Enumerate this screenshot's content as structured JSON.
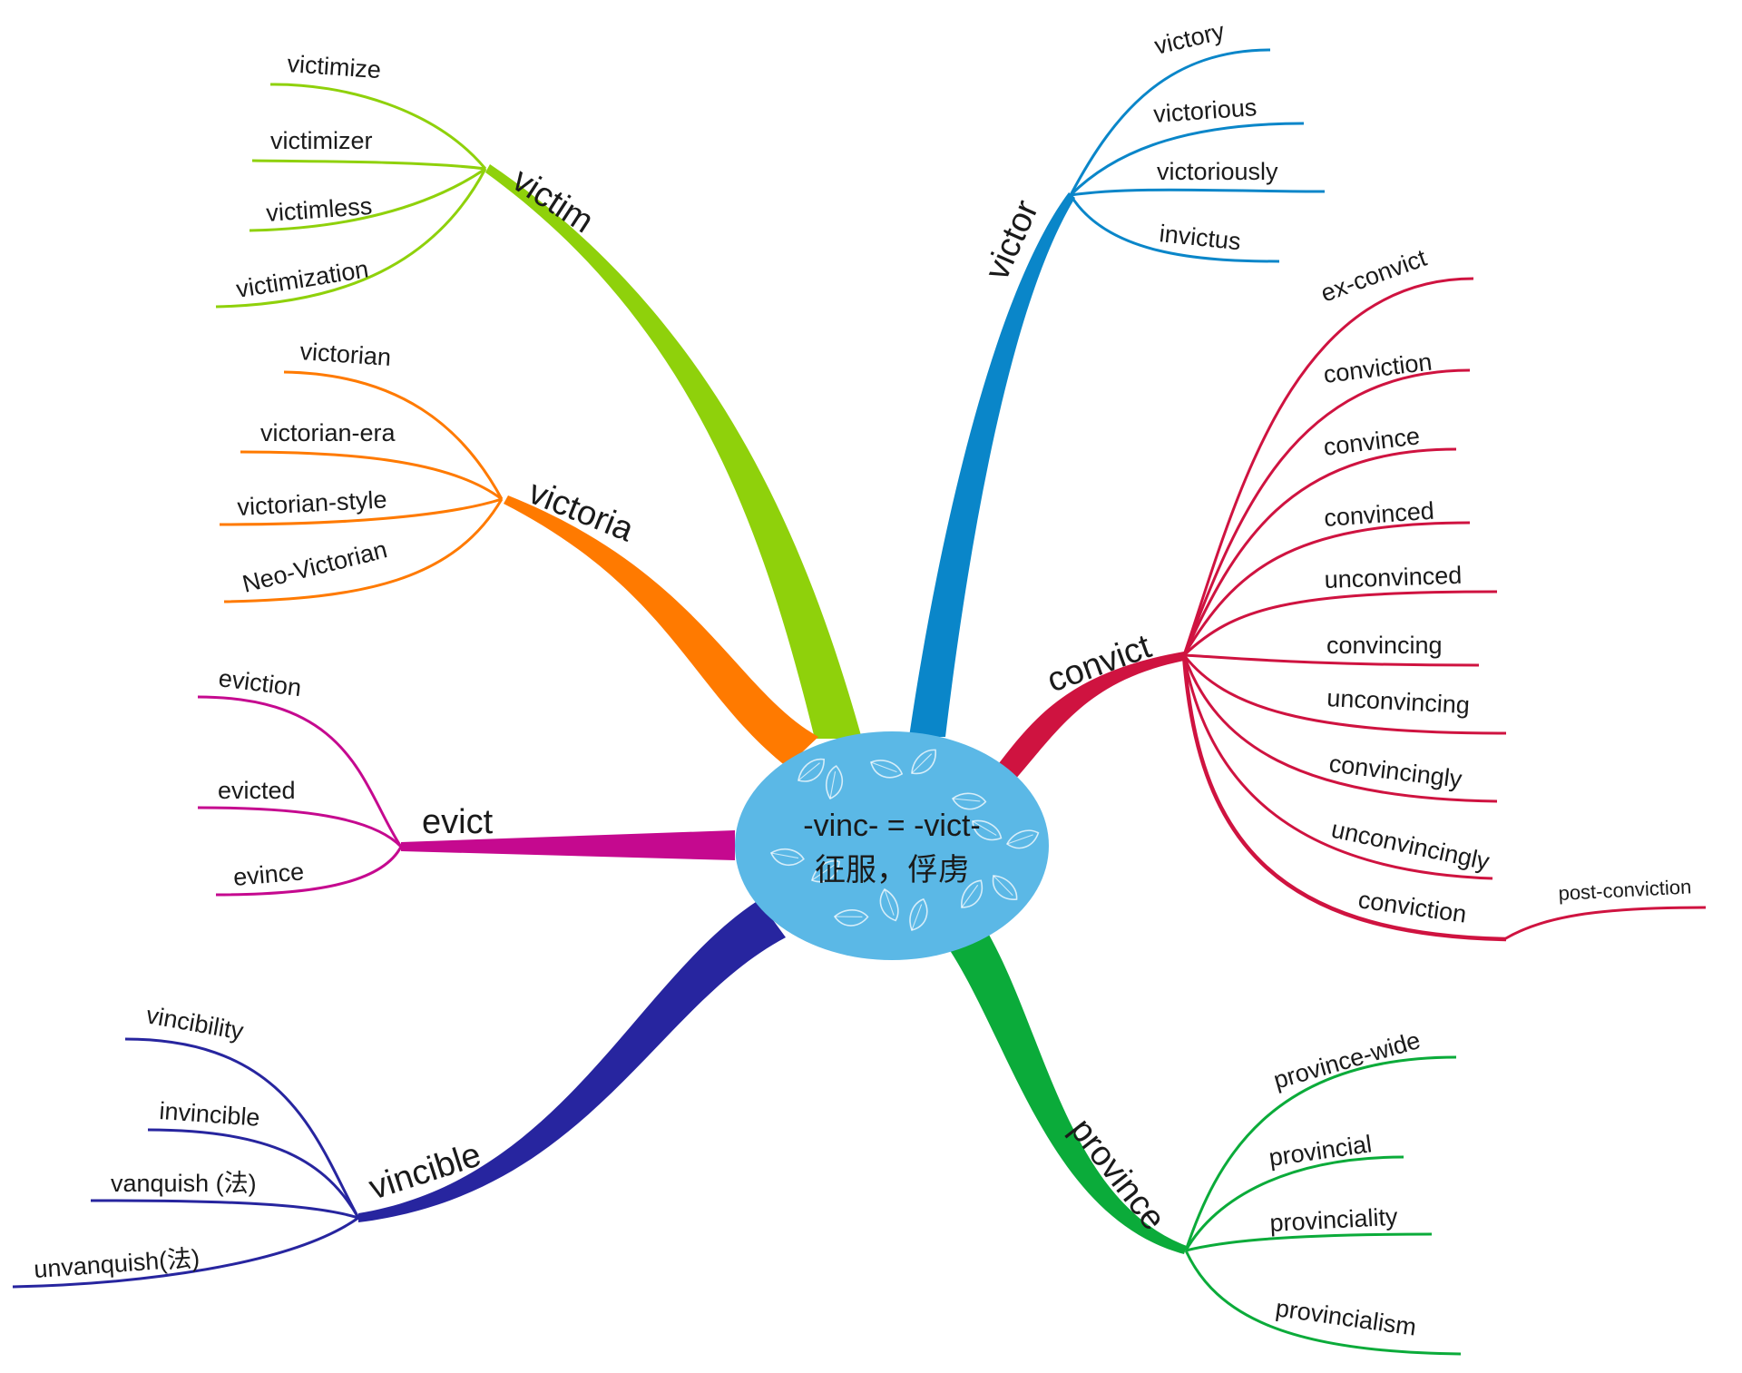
{
  "center": {
    "title": "-vinc- = -vict-",
    "subtitle": "征服，俘虏",
    "fill": "#5bb8e6"
  },
  "branches": [
    {
      "id": "victim",
      "label": "victim",
      "color": "#8fd10b",
      "leaves": [
        "victimize",
        "victimizer",
        "victimless",
        "victimization"
      ]
    },
    {
      "id": "victoria",
      "label": "victoria",
      "color": "#ff7a00",
      "leaves": [
        "victorian",
        "victorian-era",
        "victorian-style",
        "Neo-Victorian"
      ]
    },
    {
      "id": "evict",
      "label": "evict",
      "color": "#c5098f",
      "leaves": [
        "eviction",
        "evicted",
        "evince"
      ]
    },
    {
      "id": "vincible",
      "label": "vincible",
      "color": "#27259f",
      "leaves": [
        "vincibility",
        "invincible",
        "vanquish (法)",
        "unvanquish(法)"
      ]
    },
    {
      "id": "victor",
      "label": "victor",
      "color": "#0a86c9",
      "leaves": [
        "victory",
        "victorious",
        "victoriously",
        "invictus"
      ]
    },
    {
      "id": "convict",
      "label": "convict",
      "color": "#cf1340",
      "leaves": [
        "ex-convict",
        "conviction",
        "convince",
        "convinced",
        "unconvinced",
        "convincing",
        "unconvincing",
        "convincingly",
        "unconvincingly",
        "conviction"
      ],
      "subleaf": "post-conviction"
    },
    {
      "id": "province",
      "label": "province",
      "color": "#0bab3a",
      "leaves": [
        "province-wide",
        "provincial",
        "provinciality",
        "provincialism"
      ]
    }
  ]
}
